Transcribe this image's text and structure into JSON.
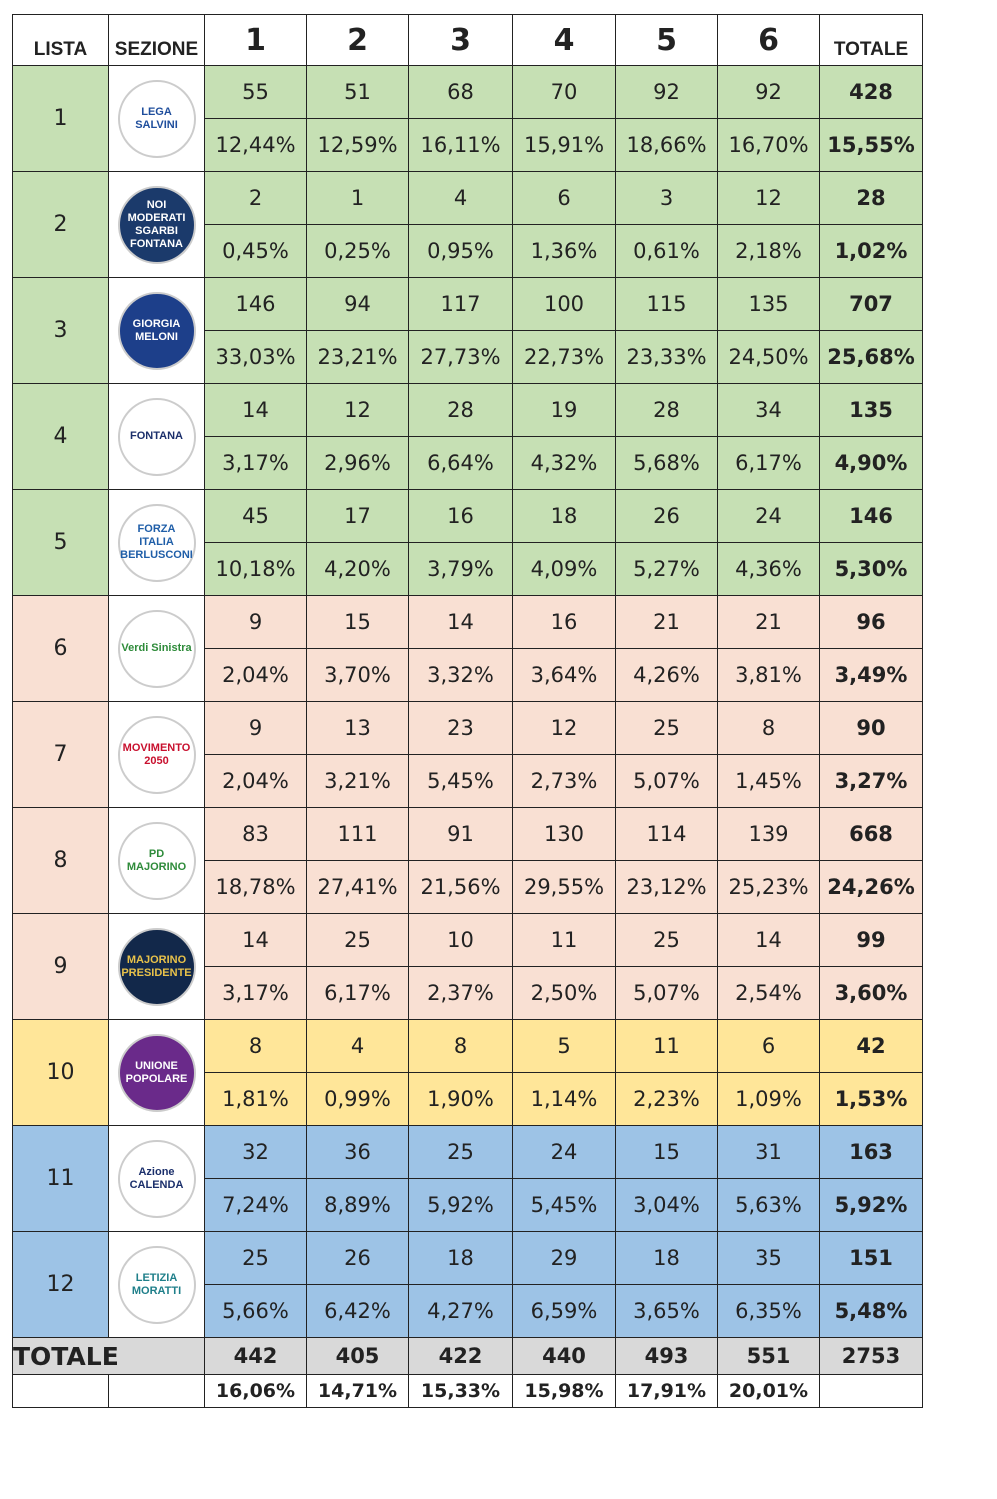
{
  "header": [
    "LISTA",
    "SEZIONE",
    "1",
    "2",
    "3",
    "4",
    "5",
    "6",
    "TOTALE"
  ],
  "rows": [
    {
      "lista": "1",
      "color": "#c6e0b4",
      "logo": {
        "lines": [
          "LEGA",
          "SALVINI"
        ],
        "bg": "#ffffff",
        "fg": "#1f4e9c"
      },
      "votes": [
        "55",
        "51",
        "68",
        "70",
        "92",
        "92",
        "428"
      ],
      "percent": [
        "12,44%",
        "12,59%",
        "16,11%",
        "15,91%",
        "18,66%",
        "16,70%",
        "15,55%"
      ]
    },
    {
      "lista": "2",
      "color": "#c6e0b4",
      "logo": {
        "lines": [
          "NOI MODERATI",
          "SGARBI",
          "FONTANA"
        ],
        "bg": "#1b3a6b",
        "fg": "#ffffff"
      },
      "votes": [
        "2",
        "1",
        "4",
        "6",
        "3",
        "12",
        "28"
      ],
      "percent": [
        "0,45%",
        "0,25%",
        "0,95%",
        "1,36%",
        "0,61%",
        "2,18%",
        "1,02%"
      ]
    },
    {
      "lista": "3",
      "color": "#c6e0b4",
      "logo": {
        "lines": [
          "GIORGIA",
          "MELONI"
        ],
        "bg": "#1d3f8a",
        "fg": "#ffffff"
      },
      "votes": [
        "146",
        "94",
        "117",
        "100",
        "115",
        "135",
        "707"
      ],
      "percent": [
        "33,03%",
        "23,21%",
        "27,73%",
        "22,73%",
        "23,33%",
        "24,50%",
        "25,68%"
      ]
    },
    {
      "lista": "4",
      "color": "#c6e0b4",
      "logo": {
        "lines": [
          "FONTANA"
        ],
        "bg": "#ffffff",
        "fg": "#1b2f6b"
      },
      "votes": [
        "14",
        "12",
        "28",
        "19",
        "28",
        "34",
        "135"
      ],
      "percent": [
        "3,17%",
        "2,96%",
        "6,64%",
        "4,32%",
        "5,68%",
        "6,17%",
        "4,90%"
      ]
    },
    {
      "lista": "5",
      "color": "#c6e0b4",
      "logo": {
        "lines": [
          "FORZA ITALIA",
          "BERLUSCONI"
        ],
        "bg": "#ffffff",
        "fg": "#1f5ea8"
      },
      "votes": [
        "45",
        "17",
        "16",
        "18",
        "26",
        "24",
        "146"
      ],
      "percent": [
        "10,18%",
        "4,20%",
        "3,79%",
        "4,09%",
        "5,27%",
        "4,36%",
        "5,30%"
      ]
    },
    {
      "lista": "6",
      "color": "#f9e0d3",
      "logo": {
        "lines": [
          "Verdi Sinistra"
        ],
        "bg": "#ffffff",
        "fg": "#2e8b3a"
      },
      "votes": [
        "9",
        "15",
        "14",
        "16",
        "21",
        "21",
        "96"
      ],
      "percent": [
        "2,04%",
        "3,70%",
        "3,32%",
        "3,64%",
        "4,26%",
        "3,81%",
        "3,49%"
      ]
    },
    {
      "lista": "7",
      "color": "#f9e0d3",
      "logo": {
        "lines": [
          "MOVIMENTO",
          "2050"
        ],
        "bg": "#ffffff",
        "fg": "#c8102e"
      },
      "votes": [
        "9",
        "13",
        "23",
        "12",
        "25",
        "8",
        "90"
      ],
      "percent": [
        "2,04%",
        "3,21%",
        "5,45%",
        "2,73%",
        "5,07%",
        "1,45%",
        "3,27%"
      ]
    },
    {
      "lista": "8",
      "color": "#f9e0d3",
      "logo": {
        "lines": [
          "PD",
          "MAJORINO"
        ],
        "bg": "#ffffff",
        "fg": "#2e8b3a"
      },
      "votes": [
        "83",
        "111",
        "91",
        "130",
        "114",
        "139",
        "668"
      ],
      "percent": [
        "18,78%",
        "27,41%",
        "21,56%",
        "29,55%",
        "23,12%",
        "25,23%",
        "24,26%"
      ]
    },
    {
      "lista": "9",
      "color": "#f9e0d3",
      "logo": {
        "lines": [
          "MAJORINO",
          "PRESIDENTE"
        ],
        "bg": "#12284a",
        "fg": "#e8c24a"
      },
      "votes": [
        "14",
        "25",
        "10",
        "11",
        "25",
        "14",
        "99"
      ],
      "percent": [
        "3,17%",
        "6,17%",
        "2,37%",
        "2,50%",
        "5,07%",
        "2,54%",
        "3,60%"
      ]
    },
    {
      "lista": "10",
      "color": "#ffe699",
      "logo": {
        "lines": [
          "UNIONE",
          "POPOLARE"
        ],
        "bg": "#6a2a8a",
        "fg": "#ffffff"
      },
      "votes": [
        "8",
        "4",
        "8",
        "5",
        "11",
        "6",
        "42"
      ],
      "percent": [
        "1,81%",
        "0,99%",
        "1,90%",
        "1,14%",
        "2,23%",
        "1,09%",
        "1,53%"
      ]
    },
    {
      "lista": "11",
      "color": "#9dc3e6",
      "logo": {
        "lines": [
          "Azione",
          "CALENDA"
        ],
        "bg": "#ffffff",
        "fg": "#1b2f6b"
      },
      "votes": [
        "32",
        "36",
        "25",
        "24",
        "15",
        "31",
        "163"
      ],
      "percent": [
        "7,24%",
        "8,89%",
        "5,92%",
        "5,45%",
        "3,04%",
        "5,63%",
        "5,92%"
      ]
    },
    {
      "lista": "12",
      "color": "#9dc3e6",
      "logo": {
        "lines": [
          "LETIZIA",
          "MORATTI"
        ],
        "bg": "#ffffff",
        "fg": "#1f7f8a"
      },
      "votes": [
        "25",
        "26",
        "18",
        "29",
        "18",
        "35",
        "151"
      ],
      "percent": [
        "5,66%",
        "6,42%",
        "4,27%",
        "6,59%",
        "3,65%",
        "6,35%",
        "5,48%"
      ]
    }
  ],
  "totals": {
    "label": "TOTALE",
    "votes": [
      "442",
      "405",
      "422",
      "440",
      "493",
      "551",
      "2753"
    ],
    "percent": [
      "16,06%",
      "14,71%",
      "15,33%",
      "15,98%",
      "17,91%",
      "20,01%"
    ]
  }
}
